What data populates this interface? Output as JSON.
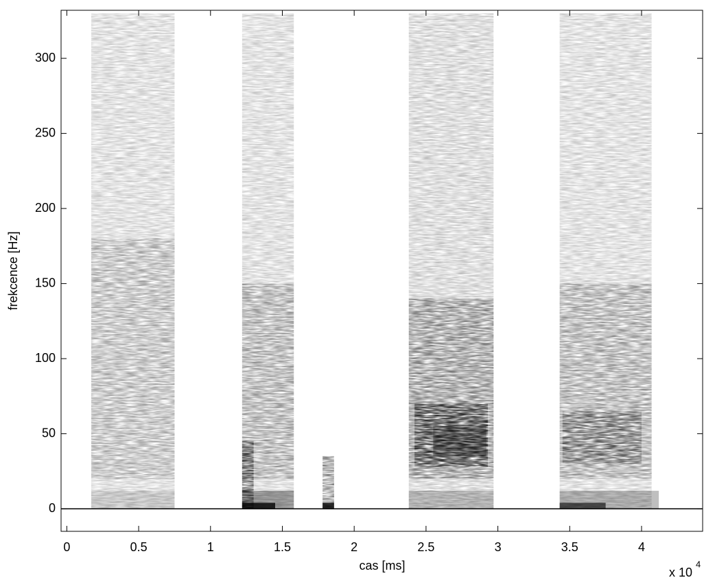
{
  "chart_data": {
    "type": "spectrogram",
    "x_label": "cas [ms]",
    "y_label": "frekcence [Hz]",
    "x_multiplier": {
      "base": "x 10",
      "exponent": "4"
    },
    "xlim": [
      -0.04,
      4.425
    ],
    "ylim": [
      -15,
      332
    ],
    "xticks": [
      0,
      0.5,
      1,
      1.5,
      2,
      2.5,
      3,
      3.5,
      4
    ],
    "yticks": [
      0,
      50,
      100,
      150,
      200,
      250,
      300
    ],
    "color": "#000000",
    "regions": [
      {
        "t": [
          0.17,
          0.75
        ],
        "f": [
          0,
          330
        ],
        "level": 0.08
      },
      {
        "t": [
          0.17,
          0.75
        ],
        "f": [
          20,
          180
        ],
        "level": 0.07
      },
      {
        "t": [
          0.17,
          0.75
        ],
        "f": [
          0,
          12
        ],
        "level": 0.12
      },
      {
        "t": [
          1.22,
          1.58
        ],
        "f": [
          0,
          330
        ],
        "level": 0.08
      },
      {
        "t": [
          1.22,
          1.58
        ],
        "f": [
          20,
          150
        ],
        "level": 0.1
      },
      {
        "t": [
          1.22,
          1.3
        ],
        "f": [
          0,
          45
        ],
        "level": 0.25
      },
      {
        "t": [
          1.22,
          1.58
        ],
        "f": [
          0,
          12
        ],
        "level": 0.35
      },
      {
        "t": [
          1.22,
          1.45
        ],
        "f": [
          0,
          4
        ],
        "level": 0.8
      },
      {
        "t": [
          1.78,
          1.86
        ],
        "f": [
          0,
          35
        ],
        "level": 0.2
      },
      {
        "t": [
          1.78,
          1.86
        ],
        "f": [
          0,
          4
        ],
        "level": 0.8
      },
      {
        "t": [
          2.38,
          2.97
        ],
        "f": [
          0,
          330
        ],
        "level": 0.09
      },
      {
        "t": [
          2.38,
          2.97
        ],
        "f": [
          20,
          140
        ],
        "level": 0.14
      },
      {
        "t": [
          2.42,
          2.93
        ],
        "f": [
          28,
          70
        ],
        "level": 0.25
      },
      {
        "t": [
          2.55,
          2.92
        ],
        "f": [
          35,
          55
        ],
        "level": 0.3
      },
      {
        "t": [
          2.38,
          2.97
        ],
        "f": [
          0,
          12
        ],
        "level": 0.2
      },
      {
        "t": [
          3.43,
          4.07
        ],
        "f": [
          0,
          330
        ],
        "level": 0.08
      },
      {
        "t": [
          3.43,
          4.07
        ],
        "f": [
          20,
          150
        ],
        "level": 0.1
      },
      {
        "t": [
          3.45,
          4.0
        ],
        "f": [
          30,
          65
        ],
        "level": 0.15
      },
      {
        "t": [
          3.43,
          4.12
        ],
        "f": [
          0,
          12
        ],
        "level": 0.25
      },
      {
        "t": [
          3.43,
          3.75
        ],
        "f": [
          0,
          4
        ],
        "level": 0.6
      }
    ]
  }
}
